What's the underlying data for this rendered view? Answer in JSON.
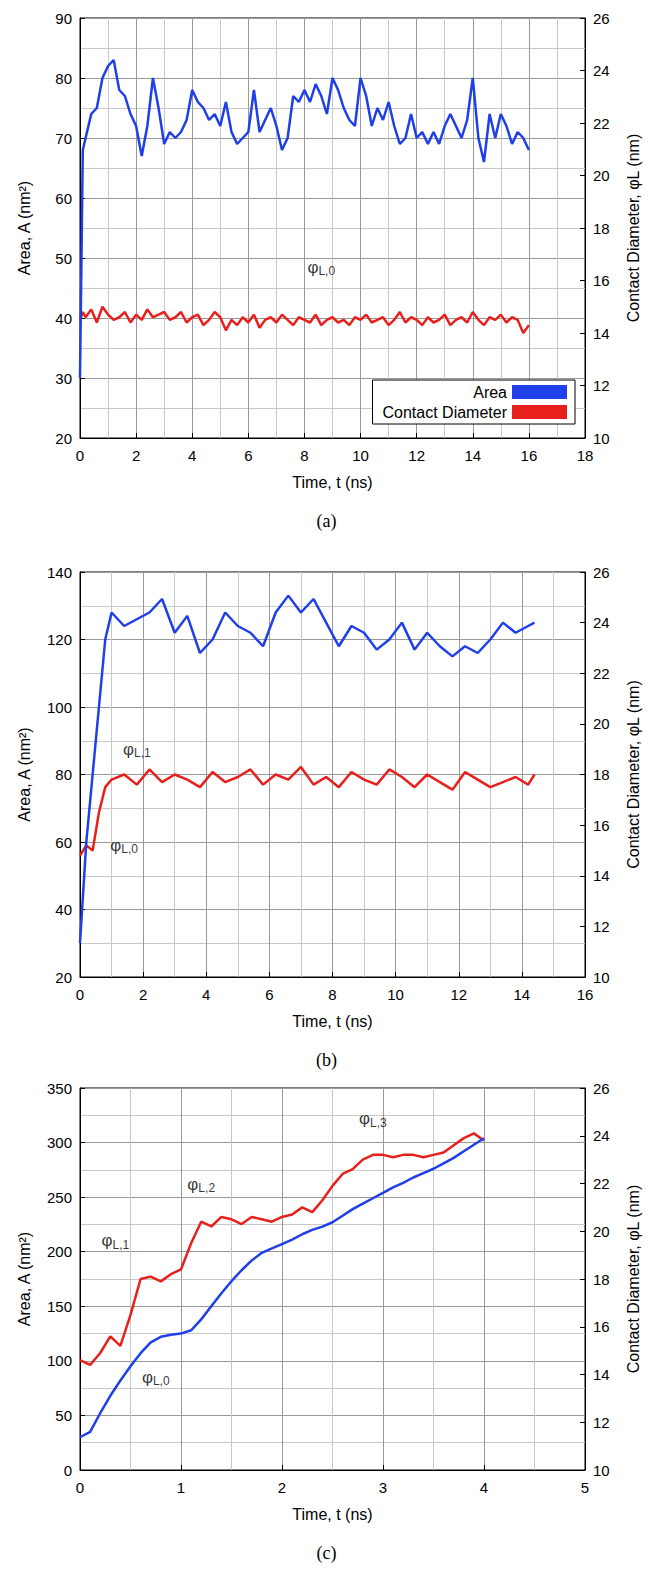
{
  "chart_data": [
    {
      "type": "line",
      "caption": "(a)",
      "x_label": "Time, t (ns)",
      "y_label": "Area, A (nm²)",
      "y2_label": "Contact Diameter, φL (nm)",
      "xlim": [
        0,
        18
      ],
      "xticks": [
        0,
        2,
        4,
        6,
        8,
        10,
        12,
        14,
        16,
        18
      ],
      "ylim": [
        20,
        90
      ],
      "yticks": [
        20,
        30,
        40,
        50,
        60,
        70,
        80,
        90
      ],
      "y2lim": [
        10,
        26
      ],
      "y2ticks": [
        10,
        12,
        14,
        16,
        18,
        20,
        22,
        24,
        26
      ],
      "grid": true,
      "legend": "lower right",
      "x": [
        0,
        0.1,
        0.2,
        0.4,
        0.6,
        0.8,
        1.0,
        1.2,
        1.4,
        1.6,
        1.8,
        2.0,
        2.2,
        2.4,
        2.6,
        2.8,
        3.0,
        3.2,
        3.4,
        3.6,
        3.8,
        4.0,
        4.2,
        4.4,
        4.6,
        4.8,
        5.0,
        5.2,
        5.4,
        5.6,
        5.8,
        6.0,
        6.2,
        6.4,
        6.6,
        6.8,
        7.0,
        7.2,
        7.4,
        7.6,
        7.8,
        8.0,
        8.2,
        8.4,
        8.6,
        8.8,
        9.0,
        9.2,
        9.4,
        9.6,
        9.8,
        10.0,
        10.2,
        10.4,
        10.6,
        10.8,
        11.0,
        11.2,
        11.4,
        11.6,
        11.8,
        12.0,
        12.2,
        12.4,
        12.6,
        12.8,
        13.0,
        13.2,
        13.4,
        13.6,
        13.8,
        14.0,
        14.2,
        14.4,
        14.6,
        14.8,
        15.0,
        15.2,
        15.4,
        15.6,
        15.8,
        16.0
      ],
      "series": [
        {
          "name": "Area",
          "color": "#1f3fe8",
          "axis": "y",
          "values": [
            30,
            68,
            70,
            74,
            75,
            80,
            82,
            83,
            78,
            77,
            74,
            72,
            67,
            72,
            80,
            75,
            69,
            71,
            70,
            71,
            73,
            78,
            76,
            75,
            73,
            74,
            72,
            76,
            71,
            69,
            70,
            71,
            78,
            71,
            73,
            75,
            72,
            68,
            70,
            77,
            76,
            78,
            76,
            79,
            77,
            74,
            80,
            78,
            75,
            73,
            72,
            80,
            77,
            72,
            75,
            73,
            76,
            72,
            69,
            70,
            74,
            70,
            71,
            69,
            71,
            69,
            72,
            74,
            72,
            70,
            73,
            80,
            70,
            66,
            74,
            70,
            74,
            72,
            69,
            71,
            70,
            68
          ]
        },
        {
          "name": "Contact Diameter",
          "color": "#e8201c",
          "axis": "y2",
          "values": [
            14.5,
            14.8,
            14.6,
            14.9,
            14.4,
            15.0,
            14.7,
            14.5,
            14.6,
            14.8,
            14.4,
            14.7,
            14.5,
            14.9,
            14.6,
            14.7,
            14.8,
            14.5,
            14.6,
            14.8,
            14.4,
            14.6,
            14.7,
            14.3,
            14.5,
            14.8,
            14.6,
            14.1,
            14.5,
            14.3,
            14.6,
            14.4,
            14.7,
            14.2,
            14.5,
            14.6,
            14.4,
            14.7,
            14.5,
            14.3,
            14.6,
            14.5,
            14.4,
            14.7,
            14.3,
            14.5,
            14.6,
            14.4,
            14.5,
            14.3,
            14.6,
            14.5,
            14.7,
            14.4,
            14.5,
            14.6,
            14.3,
            14.5,
            14.8,
            14.4,
            14.6,
            14.5,
            14.3,
            14.6,
            14.4,
            14.5,
            14.7,
            14.3,
            14.5,
            14.6,
            14.4,
            14.8,
            14.5,
            14.3,
            14.6,
            14.5,
            14.7,
            14.4,
            14.6,
            14.5,
            14.0,
            14.3
          ]
        }
      ],
      "annotations": [
        {
          "text": "φL,0",
          "x": 8.6,
          "y": 16.5,
          "axis": "y2"
        }
      ]
    },
    {
      "type": "line",
      "caption": "(b)",
      "x_label": "Time, t (ns)",
      "y_label": "Area, A (nm²)",
      "y2_label": "Contact Diameter, φL (nm)",
      "xlim": [
        0,
        16
      ],
      "xticks": [
        0,
        2,
        4,
        6,
        8,
        10,
        12,
        14,
        16
      ],
      "ylim": [
        20,
        140
      ],
      "yticks": [
        20,
        40,
        60,
        80,
        100,
        120,
        140
      ],
      "y2lim": [
        10,
        26
      ],
      "y2ticks": [
        10,
        12,
        14,
        16,
        18,
        20,
        22,
        24,
        26
      ],
      "grid": true,
      "x": [
        0,
        0.2,
        0.4,
        0.6,
        0.8,
        1.0,
        1.4,
        1.8,
        2.2,
        2.6,
        3.0,
        3.4,
        3.8,
        4.2,
        4.6,
        5.0,
        5.4,
        5.8,
        6.2,
        6.6,
        7.0,
        7.4,
        7.8,
        8.2,
        8.6,
        9.0,
        9.4,
        9.8,
        10.2,
        10.6,
        11.0,
        11.4,
        11.8,
        12.2,
        12.6,
        13.0,
        13.4,
        13.8,
        14.2,
        14.4
      ],
      "series": [
        {
          "name": "Area",
          "color": "#1f3fe8",
          "axis": "y",
          "values": [
            30,
            60,
            80,
            100,
            120,
            128,
            124,
            126,
            128,
            132,
            122,
            127,
            116,
            120,
            128,
            124,
            122,
            118,
            128,
            133,
            128,
            132,
            125,
            118,
            124,
            122,
            117,
            120,
            125,
            117,
            122,
            118,
            115,
            118,
            116,
            120,
            125,
            122,
            124,
            125
          ]
        },
        {
          "name": "Contact Diameter",
          "color": "#e8201c",
          "axis": "y2",
          "values": [
            14.8,
            15.2,
            15.0,
            16.5,
            17.5,
            17.8,
            18.0,
            17.6,
            18.2,
            17.7,
            18.0,
            17.8,
            17.5,
            18.1,
            17.7,
            17.9,
            18.2,
            17.6,
            18.0,
            17.8,
            18.3,
            17.6,
            17.9,
            17.5,
            18.1,
            17.8,
            17.6,
            18.2,
            17.9,
            17.5,
            18.0,
            17.7,
            17.4,
            18.1,
            17.8,
            17.5,
            17.7,
            17.9,
            17.6,
            18.0
          ]
        }
      ],
      "annotations": [
        {
          "text": "φL,1",
          "x": 1.8,
          "y": 19.0,
          "axis": "y2"
        },
        {
          "text": "φL,0",
          "x": 1.4,
          "y": 15.2,
          "axis": "y2"
        }
      ]
    },
    {
      "type": "line",
      "caption": "(c)",
      "x_label": "Time, t (ns)",
      "y_label": "Area, A (nm²)",
      "y2_label": "Contact Diameter, φL (nm)",
      "xlim": [
        0,
        5
      ],
      "xticks": [
        0,
        1,
        2,
        3,
        4,
        5
      ],
      "ylim": [
        0,
        350
      ],
      "yticks": [
        0,
        50,
        100,
        150,
        200,
        250,
        300,
        350
      ],
      "y2lim": [
        10,
        26
      ],
      "y2ticks": [
        10,
        12,
        14,
        16,
        18,
        20,
        22,
        24,
        26
      ],
      "grid": true,
      "x": [
        0,
        0.1,
        0.2,
        0.3,
        0.4,
        0.5,
        0.6,
        0.7,
        0.8,
        0.9,
        1.0,
        1.1,
        1.2,
        1.3,
        1.4,
        1.5,
        1.6,
        1.7,
        1.8,
        1.9,
        2.0,
        2.1,
        2.2,
        2.3,
        2.4,
        2.5,
        2.6,
        2.7,
        2.8,
        2.9,
        3.0,
        3.1,
        3.2,
        3.3,
        3.4,
        3.5,
        3.6,
        3.7,
        3.8,
        3.9,
        4.0
      ],
      "series": [
        {
          "name": "Area",
          "color": "#1f3fe8",
          "axis": "y",
          "values": [
            30,
            35,
            52,
            68,
            82,
            95,
            107,
            117,
            122,
            124,
            125,
            128,
            138,
            150,
            162,
            173,
            183,
            192,
            199,
            203,
            207,
            211,
            216,
            220,
            223,
            227,
            233,
            239,
            244,
            249,
            254,
            259,
            263,
            268,
            272,
            276,
            281,
            286,
            292,
            298,
            304
          ]
        },
        {
          "name": "Contact Diameter",
          "color": "#e8201c",
          "axis": "y2",
          "values": [
            14.6,
            14.4,
            14.9,
            15.6,
            15.2,
            16.5,
            18.0,
            18.1,
            17.9,
            18.2,
            18.4,
            19.5,
            20.4,
            20.2,
            20.6,
            20.5,
            20.3,
            20.6,
            20.5,
            20.4,
            20.6,
            20.7,
            21.0,
            20.8,
            21.3,
            21.9,
            22.4,
            22.6,
            23.0,
            23.2,
            23.2,
            23.1,
            23.2,
            23.2,
            23.1,
            23.2,
            23.3,
            23.6,
            23.9,
            24.1,
            23.8
          ]
        }
      ],
      "annotations": [
        {
          "text": "φL,3",
          "x": 2.9,
          "y": 322,
          "axis": "y"
        },
        {
          "text": "φL,2",
          "x": 1.2,
          "y": 262,
          "axis": "y"
        },
        {
          "text": "φL,1",
          "x": 0.35,
          "y": 210,
          "axis": "y"
        },
        {
          "text": "φL,0",
          "x": 0.75,
          "y": 85,
          "axis": "y"
        }
      ]
    }
  ]
}
